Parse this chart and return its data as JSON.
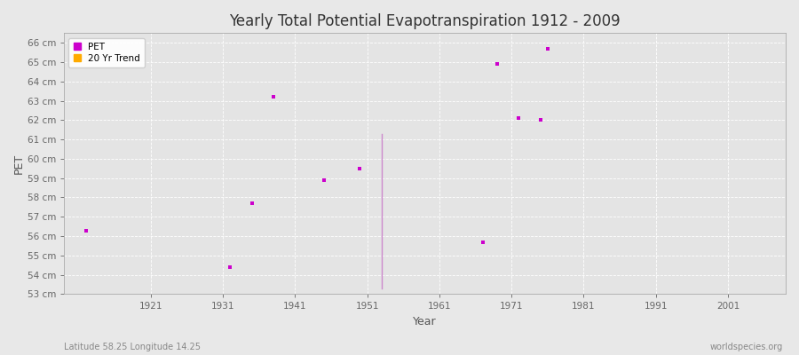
{
  "title": "Yearly Total Potential Evapotranspiration 1912 - 2009",
  "xlabel": "Year",
  "ylabel": "PET",
  "fig_bg_color": "#e8e8e8",
  "plot_bg_color": "#e4e4e4",
  "xlim": [
    1909,
    2009
  ],
  "ylim": [
    53,
    66.5
  ],
  "yticks": [
    53,
    54,
    55,
    56,
    57,
    58,
    59,
    60,
    61,
    62,
    63,
    64,
    65,
    66
  ],
  "ytick_labels": [
    "53 cm",
    "54 cm",
    "55 cm",
    "56 cm",
    "57 cm",
    "58 cm",
    "59 cm",
    "60 cm",
    "61 cm",
    "62 cm",
    "63 cm",
    "64 cm",
    "65 cm",
    "66 cm"
  ],
  "xticks": [
    1921,
    1931,
    1941,
    1951,
    1961,
    1971,
    1981,
    1991,
    2001
  ],
  "pet_color": "#cc00cc",
  "trend_color": "#cc88cc",
  "pet_points": [
    [
      1912,
      56.3
    ],
    [
      1932,
      54.4
    ],
    [
      1935,
      57.7
    ],
    [
      1938,
      63.2
    ],
    [
      1945,
      58.9
    ],
    [
      1950,
      59.5
    ],
    [
      1967,
      55.7
    ],
    [
      1969,
      64.9
    ],
    [
      1972,
      62.1
    ],
    [
      1975,
      62.0
    ],
    [
      1976,
      65.7
    ]
  ],
  "trend_line": [
    [
      1953,
      61.3
    ],
    [
      1953,
      53.3
    ]
  ],
  "footnote_left": "Latitude 58.25 Longitude 14.25",
  "footnote_right": "worldspecies.org",
  "legend_entries": [
    "PET",
    "20 Yr Trend"
  ],
  "legend_colors": [
    "#cc00cc",
    "#ffaa00"
  ]
}
